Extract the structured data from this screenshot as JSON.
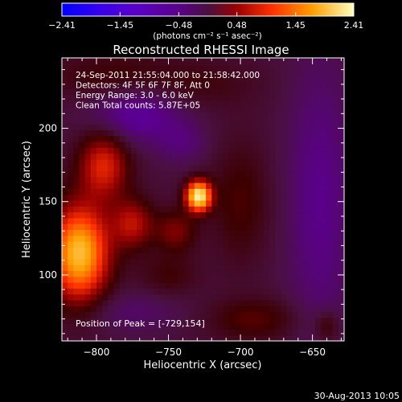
{
  "chart_data": {
    "type": "heatmap",
    "title": "Reconstructed RHESSI Image",
    "xlabel": "Heliocentric X (arcsec)",
    "ylabel": "Heliocentric Y (arcsec)",
    "xlim": [
      -824,
      -628
    ],
    "ylim": [
      55,
      248
    ],
    "x_ticks": [
      -800,
      -750,
      -700,
      -650
    ],
    "x_tick_labels": [
      "−800",
      "−750",
      "−700",
      "−650"
    ],
    "y_ticks": [
      100,
      150,
      200
    ],
    "y_tick_labels": [
      "100",
      "150",
      "200"
    ],
    "colorbar": {
      "range": [
        -2.41,
        2.41
      ],
      "ticks": [
        -2.41,
        -1.45,
        -0.48,
        0.48,
        1.45,
        2.41
      ],
      "tick_labels": [
        "−2.41",
        "−1.45",
        "−0.48",
        "0.48",
        "1.45",
        "2.41"
      ],
      "unit_label": "(photons cm⁻² s⁻¹ asec⁻²)"
    },
    "annotations": [
      "24-Sep-2011 21:55:04.000 to 21:58:42.000",
      "Detectors: 4F 5F 6F 7F 8F, Att 0",
      "Energy Range: 3.0 - 6.0 keV",
      "Clean    Total counts: 5.87E+05"
    ],
    "peak_label": "Position of Peak = [-729,154]",
    "peak": {
      "x": -729,
      "y": 154
    },
    "sources": [
      {
        "x": -729,
        "y": 154,
        "amp": 2.45,
        "sx": 6,
        "sy": 7
      },
      {
        "x": -812,
        "y": 115,
        "amp": 2.0,
        "sx": 14,
        "sy": 22
      },
      {
        "x": -795,
        "y": 175,
        "amp": 1.0,
        "sx": 12,
        "sy": 16
      },
      {
        "x": -775,
        "y": 135,
        "amp": 0.8,
        "sx": 10,
        "sy": 12
      },
      {
        "x": -745,
        "y": 130,
        "amp": 0.55,
        "sx": 10,
        "sy": 10
      },
      {
        "x": -700,
        "y": 150,
        "amp": 0.35,
        "sx": 14,
        "sy": 28
      },
      {
        "x": -750,
        "y": 100,
        "amp": 0.28,
        "sx": 14,
        "sy": 10
      },
      {
        "x": -645,
        "y": 150,
        "amp": -0.45,
        "sx": 16,
        "sy": 70
      },
      {
        "x": -790,
        "y": 235,
        "amp": 0.3,
        "sx": 30,
        "sy": 12
      },
      {
        "x": -730,
        "y": 230,
        "amp": 0.22,
        "sx": 30,
        "sy": 12
      },
      {
        "x": -690,
        "y": 70,
        "amp": 0.4,
        "sx": 22,
        "sy": 10
      },
      {
        "x": -640,
        "y": 65,
        "amp": 0.4,
        "sx": 6,
        "sy": 8
      },
      {
        "x": -772,
        "y": 210,
        "amp": -0.6,
        "sx": 22,
        "sy": 14
      },
      {
        "x": -740,
        "y": 190,
        "amp": -0.3,
        "sx": 12,
        "sy": 10
      },
      {
        "x": -775,
        "y": 75,
        "amp": -0.25,
        "sx": 25,
        "sy": 10
      }
    ],
    "background_level": -0.15
  },
  "footer_date": "30-Aug-2013 10:05"
}
